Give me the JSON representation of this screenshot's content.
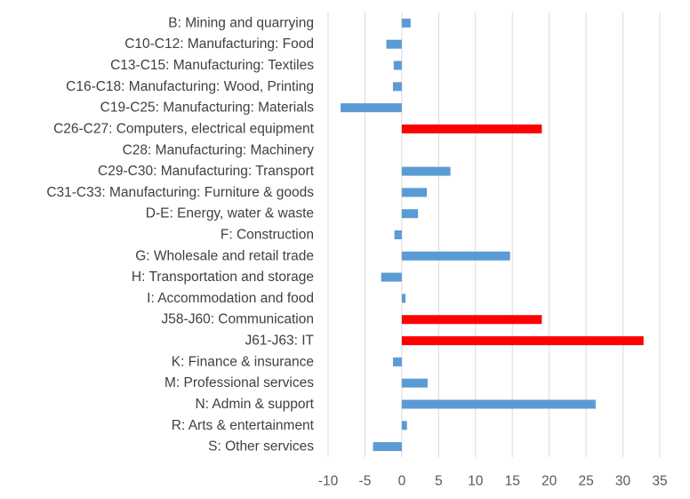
{
  "chart_data": {
    "type": "bar",
    "orientation": "horizontal",
    "categories": [
      "B: Mining and quarrying",
      "C10-C12: Manufacturing: Food",
      "C13-C15: Manufacturing: Textiles",
      "C16-C18: Manufacturing: Wood, Printing",
      "C19-C25: Manufacturing: Materials",
      "C26-C27: Computers, electrical equipment",
      "C28: Manufacturing: Machinery",
      "C29-C30: Manufacturing: Transport",
      "C31-C33: Manufacturing: Furniture & goods",
      "D-E: Energy, water & waste",
      "F: Construction",
      "G: Wholesale and retail trade",
      "H: Transportation and storage",
      "I: Accommodation and food",
      "J58-J60: Communication",
      "J61-J63: IT",
      "K: Finance & insurance",
      "M: Professional services",
      "N: Admin & support",
      "R: Arts & entertainment",
      "S: Other services"
    ],
    "values": [
      1.2,
      -2.1,
      -1.1,
      -1.2,
      -8.3,
      19.0,
      0.0,
      6.6,
      3.4,
      2.2,
      -1.0,
      14.7,
      -2.8,
      0.5,
      19.0,
      32.8,
      -1.2,
      3.5,
      26.3,
      0.7,
      -3.9
    ],
    "highlighted": [
      false,
      false,
      false,
      false,
      false,
      true,
      false,
      false,
      false,
      false,
      false,
      false,
      false,
      false,
      true,
      true,
      false,
      false,
      false,
      false,
      false
    ],
    "colors": {
      "default": "#5b9bd5",
      "highlight": "#ff0000",
      "grid": "#d9d9d9"
    },
    "xlim": [
      -10,
      35
    ],
    "xticks": [
      "-10",
      "-5",
      "0",
      "5",
      "10",
      "15",
      "20",
      "25",
      "30",
      "35"
    ],
    "grid": true,
    "legend": false,
    "title": "",
    "xlabel": "",
    "ylabel": ""
  }
}
